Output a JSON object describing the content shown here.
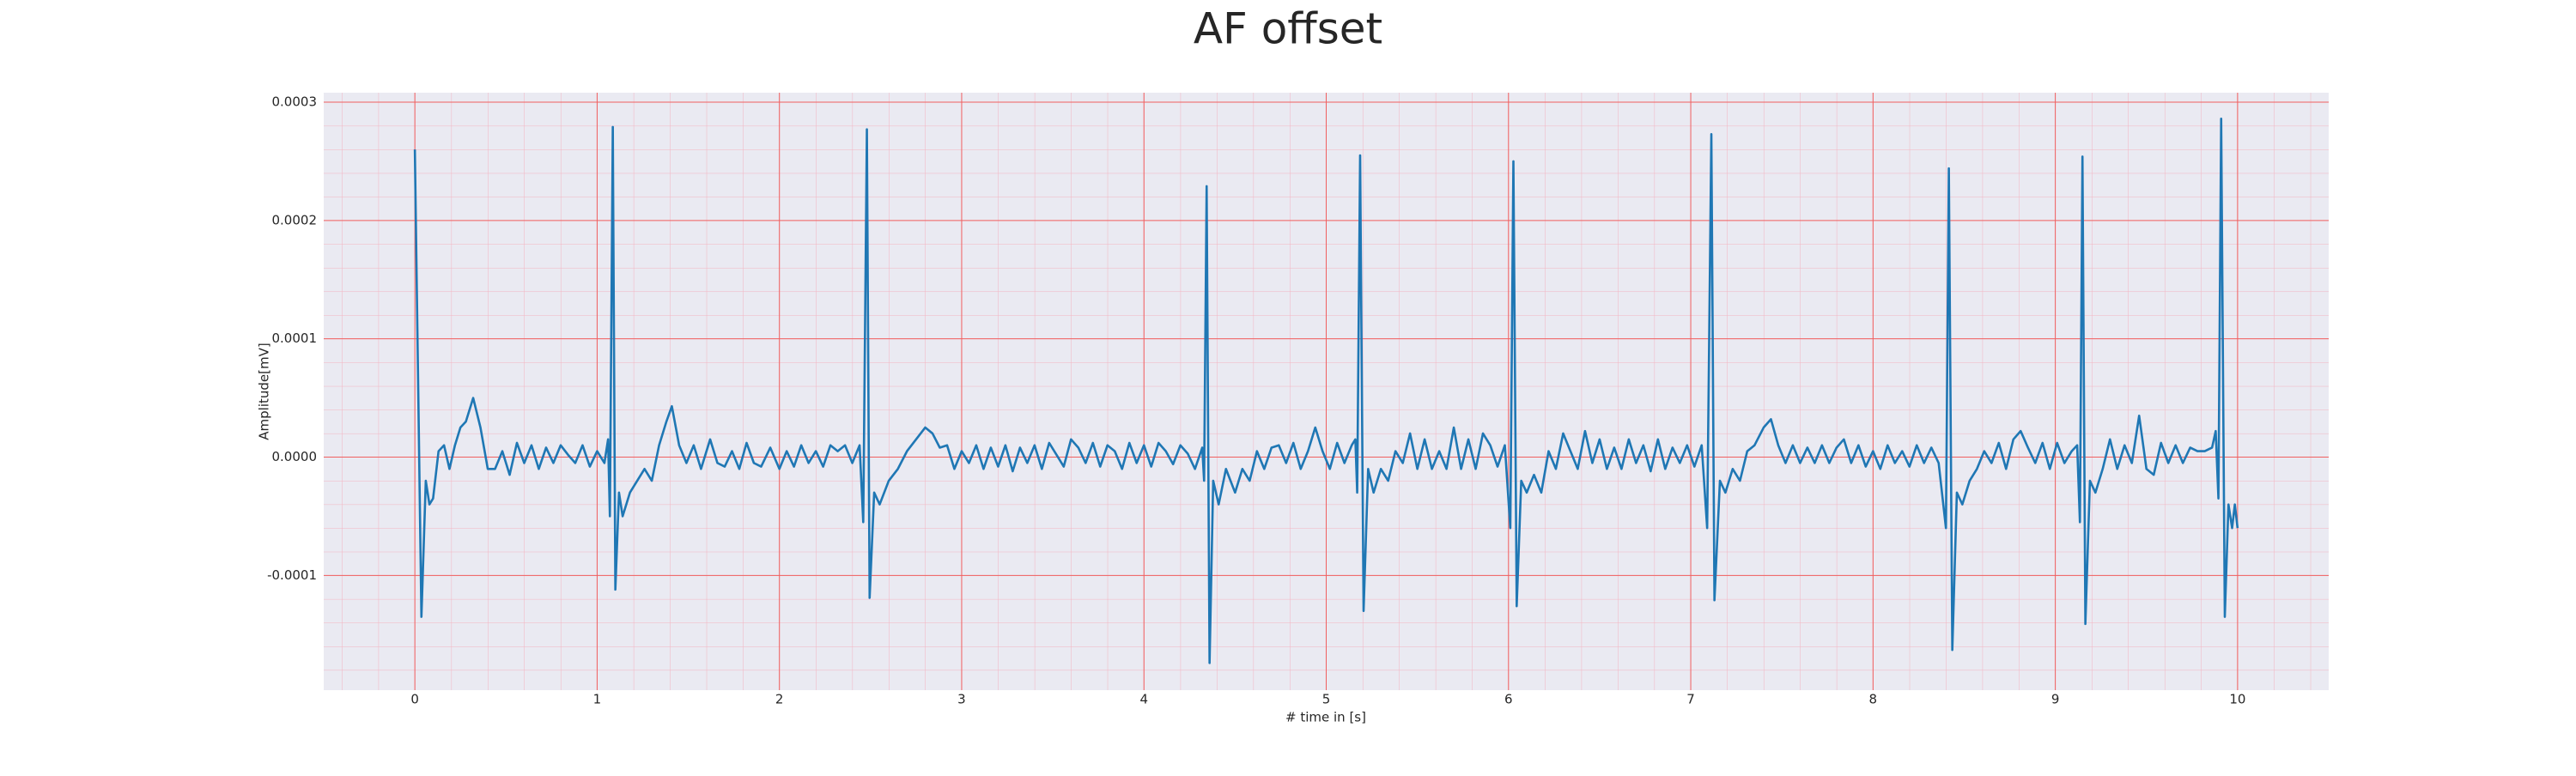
{
  "chart_data": {
    "type": "line",
    "title": "AF offset",
    "x_label": "# time in [s]",
    "y_label": "Amplitude[mV]",
    "color": "#1f77b4",
    "grid": true,
    "xlim": [
      -0.5,
      10.5
    ],
    "xticks": [
      0,
      1,
      2,
      3,
      4,
      5,
      6,
      7,
      8,
      9,
      10
    ],
    "ylim": [
      -0.000197,
      0.000308
    ],
    "yticks": [
      -0.0001,
      {
        "value": 0,
        "label": "0.0000"
      },
      0.0001,
      0.0002,
      0.0003
    ],
    "x": [
      0,
      0.036,
      0.06,
      0.08,
      0.1,
      0.13,
      0.16,
      0.19,
      0.22,
      0.25,
      0.28,
      0.32,
      0.36,
      0.4,
      0.44,
      0.48,
      0.52,
      0.56,
      0.6,
      0.64,
      0.68,
      0.72,
      0.76,
      0.8,
      0.84,
      0.88,
      0.92,
      0.96,
      1.0,
      1.04,
      1.06,
      1.07,
      1.086,
      1.1,
      1.12,
      1.14,
      1.18,
      1.22,
      1.26,
      1.3,
      1.34,
      1.38,
      1.41,
      1.45,
      1.49,
      1.53,
      1.57,
      1.62,
      1.66,
      1.7,
      1.74,
      1.78,
      1.82,
      1.86,
      1.9,
      1.95,
      2.0,
      2.04,
      2.08,
      2.12,
      2.16,
      2.2,
      2.24,
      2.28,
      2.32,
      2.36,
      2.4,
      2.44,
      2.46,
      2.48,
      2.495,
      2.52,
      2.55,
      2.6,
      2.65,
      2.7,
      2.75,
      2.8,
      2.84,
      2.88,
      2.92,
      2.96,
      3.0,
      3.04,
      3.08,
      3.12,
      3.16,
      3.2,
      3.24,
      3.28,
      3.32,
      3.36,
      3.4,
      3.44,
      3.48,
      3.52,
      3.56,
      3.6,
      3.64,
      3.68,
      3.72,
      3.76,
      3.8,
      3.84,
      3.88,
      3.92,
      3.96,
      4.0,
      4.04,
      4.08,
      4.12,
      4.16,
      4.2,
      4.24,
      4.28,
      4.32,
      4.33,
      4.344,
      4.36,
      4.38,
      4.41,
      4.45,
      4.5,
      4.54,
      4.58,
      4.62,
      4.66,
      4.7,
      4.74,
      4.78,
      4.82,
      4.86,
      4.9,
      4.94,
      4.98,
      5.02,
      5.06,
      5.1,
      5.14,
      5.16,
      5.17,
      5.186,
      5.205,
      5.23,
      5.26,
      5.3,
      5.34,
      5.38,
      5.42,
      5.46,
      5.5,
      5.54,
      5.58,
      5.62,
      5.66,
      5.7,
      5.74,
      5.78,
      5.82,
      5.86,
      5.9,
      5.94,
      5.98,
      6.01,
      6.027,
      6.045,
      6.07,
      6.1,
      6.14,
      6.18,
      6.22,
      6.26,
      6.3,
      6.34,
      6.38,
      6.42,
      6.46,
      6.5,
      6.54,
      6.58,
      6.62,
      6.66,
      6.7,
      6.74,
      6.78,
      6.82,
      6.86,
      6.9,
      6.94,
      6.98,
      7.02,
      7.06,
      7.09,
      7.113,
      7.13,
      7.16,
      7.19,
      7.23,
      7.27,
      7.31,
      7.35,
      7.4,
      7.44,
      7.48,
      7.52,
      7.56,
      7.6,
      7.64,
      7.68,
      7.72,
      7.76,
      7.8,
      7.84,
      7.88,
      7.92,
      7.96,
      8.0,
      8.04,
      8.08,
      8.12,
      8.16,
      8.2,
      8.24,
      8.28,
      8.32,
      8.36,
      8.4,
      8.416,
      8.435,
      8.46,
      8.49,
      8.53,
      8.57,
      8.61,
      8.65,
      8.69,
      8.73,
      8.77,
      8.81,
      8.85,
      8.89,
      8.93,
      8.97,
      9.01,
      9.05,
      9.09,
      9.12,
      9.135,
      9.149,
      9.165,
      9.19,
      9.22,
      9.26,
      9.3,
      9.34,
      9.38,
      9.42,
      9.46,
      9.5,
      9.54,
      9.58,
      9.62,
      9.66,
      9.7,
      9.74,
      9.78,
      9.82,
      9.86,
      9.88,
      9.895,
      9.91,
      9.93,
      9.95,
      9.97,
      9.985,
      10.0
    ],
    "values": [
      0.00026,
      -0.000135,
      -2e-05,
      -4e-05,
      -3.5e-05,
      5e-06,
      1e-05,
      -1e-05,
      1e-05,
      2.5e-05,
      3e-05,
      5e-05,
      2.5e-05,
      -1e-05,
      -1e-05,
      5e-06,
      -1.5e-05,
      1.2e-05,
      -5e-06,
      1e-05,
      -1e-05,
      8e-06,
      -5e-06,
      1e-05,
      2e-06,
      -5e-06,
      1e-05,
      -8e-06,
      5e-06,
      -5e-06,
      1.5e-05,
      -5e-05,
      0.000279,
      -0.000112,
      -3e-05,
      -5e-05,
      -3e-05,
      -2e-05,
      -1e-05,
      -2e-05,
      1e-05,
      3e-05,
      4.3e-05,
      1e-05,
      -5e-06,
      1e-05,
      -1e-05,
      1.5e-05,
      -5e-06,
      -8e-06,
      5e-06,
      -1e-05,
      1.2e-05,
      -5e-06,
      -8e-06,
      8e-06,
      -1e-05,
      5e-06,
      -8e-06,
      1e-05,
      -5e-06,
      5e-06,
      -8e-06,
      1e-05,
      5e-06,
      1e-05,
      -5e-06,
      1e-05,
      -5.5e-05,
      0.000277,
      -0.000119,
      -3e-05,
      -4e-05,
      -2e-05,
      -1e-05,
      5e-06,
      1.5e-05,
      2.5e-05,
      2e-05,
      8e-06,
      1e-05,
      -1e-05,
      5e-06,
      -5e-06,
      1e-05,
      -1e-05,
      8e-06,
      -8e-06,
      1e-05,
      -1.2e-05,
      8e-06,
      -5e-06,
      1e-05,
      -1e-05,
      1.2e-05,
      2e-06,
      -8e-06,
      1.5e-05,
      8e-06,
      -5e-06,
      1.2e-05,
      -8e-06,
      1e-05,
      5e-06,
      -1e-05,
      1.2e-05,
      -5e-06,
      1e-05,
      -8e-06,
      1.2e-05,
      5e-06,
      -6e-06,
      1e-05,
      3e-06,
      -1e-05,
      8e-06,
      -2e-05,
      0.000229,
      -0.000174,
      -2e-05,
      -4e-05,
      -1e-05,
      -3e-05,
      -1e-05,
      -2e-05,
      5e-06,
      -1e-05,
      8e-06,
      1e-05,
      -5e-06,
      1.2e-05,
      -1e-05,
      5e-06,
      2.5e-05,
      5e-06,
      -1e-05,
      1.2e-05,
      -5e-06,
      1e-05,
      1.5e-05,
      -3e-05,
      0.000255,
      -0.00013,
      -1e-05,
      -3e-05,
      -1e-05,
      -2e-05,
      5e-06,
      -5e-06,
      2e-05,
      -1e-05,
      1.5e-05,
      -1e-05,
      5e-06,
      -1e-05,
      2.5e-05,
      -1e-05,
      1.5e-05,
      -1e-05,
      2e-05,
      1e-05,
      -8e-06,
      1e-05,
      -6e-05,
      0.00025,
      -0.000126,
      -2e-05,
      -3e-05,
      -1.5e-05,
      -3e-05,
      5e-06,
      -1e-05,
      2e-05,
      5e-06,
      -1e-05,
      2.2e-05,
      -5e-06,
      1.5e-05,
      -1e-05,
      8e-06,
      -1e-05,
      1.5e-05,
      -5e-06,
      1e-05,
      -1.2e-05,
      1.5e-05,
      -1e-05,
      8e-06,
      -5e-06,
      1e-05,
      -8e-06,
      1e-05,
      -6e-05,
      0.000273,
      -0.000121,
      -2e-05,
      -3e-05,
      -1e-05,
      -2e-05,
      5e-06,
      1e-05,
      2.5e-05,
      3.2e-05,
      1e-05,
      -5e-06,
      1e-05,
      -5e-06,
      8e-06,
      -5e-06,
      1e-05,
      -5e-06,
      8e-06,
      1.5e-05,
      -5e-06,
      1e-05,
      -8e-06,
      5e-06,
      -1e-05,
      1e-05,
      -5e-06,
      5e-06,
      -8e-06,
      1e-05,
      -5e-06,
      8e-06,
      -5e-06,
      -6e-05,
      0.000244,
      -0.000163,
      -3e-05,
      -4e-05,
      -2e-05,
      -1e-05,
      5e-06,
      -5e-06,
      1.2e-05,
      -1e-05,
      1.5e-05,
      2.2e-05,
      8e-06,
      -5e-06,
      1.2e-05,
      -1e-05,
      1.2e-05,
      -5e-06,
      5e-06,
      1e-05,
      -5.5e-05,
      0.000254,
      -0.000141,
      -2e-05,
      -3e-05,
      -1e-05,
      1.5e-05,
      -1e-05,
      1e-05,
      -5e-06,
      3.5e-05,
      -1e-05,
      -1.5e-05,
      1.2e-05,
      -5e-06,
      1e-05,
      -5e-06,
      8e-06,
      5e-06,
      5e-06,
      8e-06,
      2.2e-05,
      -3.5e-05,
      0.000286,
      -0.000135,
      -4e-05,
      -6e-05,
      -4e-05,
      -6e-05
    ]
  }
}
